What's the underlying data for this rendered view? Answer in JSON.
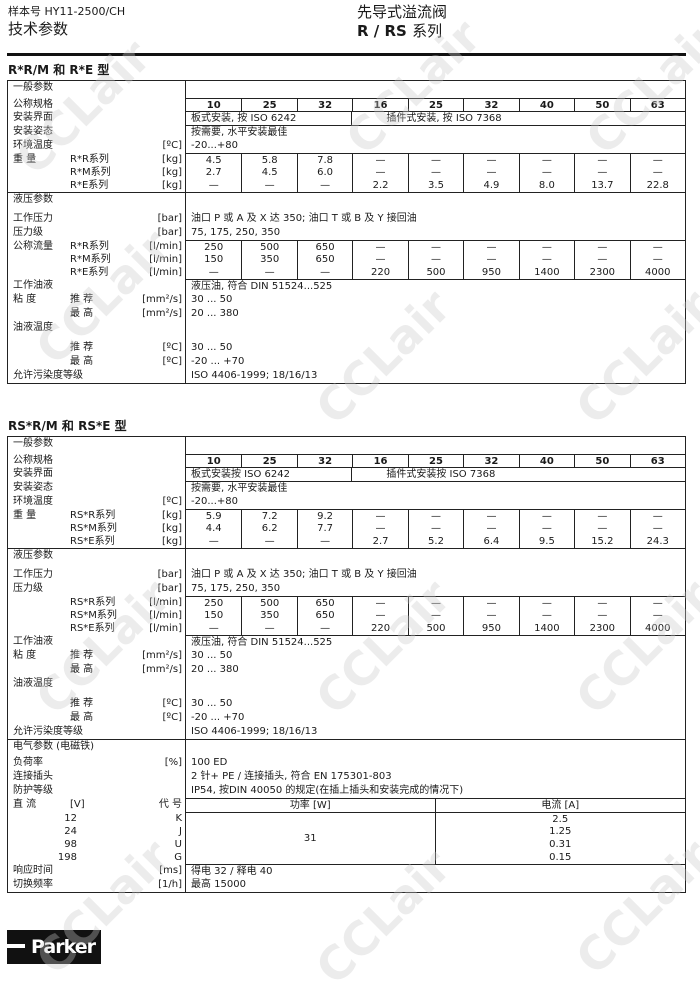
{
  "header": {
    "catalog": "样本号 HY11-2500/CH",
    "section": "技术参数",
    "product": "先导式溢流阀",
    "series_bold": "R / RS",
    "series_suffix": "系列"
  },
  "watermark": "CCLair",
  "logo": "Parker",
  "tables": [
    {
      "title": "R*R/M 和 R*E 型",
      "rows": [
        {
          "k": "section",
          "label": "一般参数"
        },
        {
          "k": "grid",
          "bold": true,
          "rule": true,
          "label": "公称规格",
          "cells": [
            "10",
            "25",
            "32",
            "16",
            "25",
            "32",
            "40",
            "50",
            "63"
          ]
        },
        {
          "k": "span",
          "rule": true,
          "label": "安装界面",
          "spans": [
            {
              "text": "板式安装, 按 ISO 6242",
              "cols": 3
            },
            {
              "text": "插件式安装, 按 ISO 7368",
              "cols": 6,
              "indent": true
            }
          ]
        },
        {
          "k": "text",
          "rule": true,
          "label": "安装姿态",
          "text": "按需要, 水平安装最佳"
        },
        {
          "k": "text",
          "label": "环境温度",
          "unit": "[ºC]",
          "text": "-20...+80"
        },
        {
          "k": "grid",
          "rule": true,
          "label": "重 量",
          "sub": "R*R系列",
          "unit": "[kg]",
          "cells": [
            "4.5",
            "5.8",
            "7.8",
            "—",
            "—",
            "—",
            "—",
            "—",
            "—"
          ]
        },
        {
          "k": "grid",
          "sub": "R*M系列",
          "unit": "[kg]",
          "cells": [
            "2.7",
            "4.5",
            "6.0",
            "—",
            "—",
            "—",
            "—",
            "—",
            "—"
          ]
        },
        {
          "k": "grid",
          "sub": "R*E系列",
          "unit": "[kg]",
          "cells": [
            "—",
            "—",
            "—",
            "2.2",
            "3.5",
            "4.9",
            "8.0",
            "13.7",
            "22.8"
          ]
        },
        {
          "k": "section",
          "full": true,
          "tall": true,
          "label": "液压参数"
        },
        {
          "k": "text",
          "label": "工作压力",
          "unit": "[bar]",
          "text": "油口 P 或 A 及 X 达 350;  油口 T 或 B 及 Y 接回油"
        },
        {
          "k": "text",
          "label": "压力级",
          "unit": "[bar]",
          "text": "75, 175, 250, 350"
        },
        {
          "k": "grid",
          "rule": true,
          "label": "公称流量",
          "sub": "R*R系列",
          "unit": "[l/min]",
          "cells": [
            "250",
            "500",
            "650",
            "—",
            "—",
            "—",
            "—",
            "—",
            "—"
          ]
        },
        {
          "k": "grid",
          "sub": "R*M系列",
          "unit": "[l/min]",
          "cells": [
            "150",
            "350",
            "650",
            "—",
            "—",
            "—",
            "—",
            "—",
            "—"
          ]
        },
        {
          "k": "grid",
          "sub": "R*E系列",
          "unit": "[l/min]",
          "cells": [
            "—",
            "—",
            "—",
            "220",
            "500",
            "950",
            "1400",
            "2300",
            "4000"
          ]
        },
        {
          "k": "text",
          "rule": true,
          "label": "工作油液",
          "text": "液压油, 符合 DIN 51524...525"
        },
        {
          "k": "text",
          "label": "粘 度",
          "sub": "推 荐",
          "unit": "[mm²/s]",
          "text": "30 ... 50"
        },
        {
          "k": "text",
          "sub": "最 高",
          "unit": "[mm²/s]",
          "text": "20 ... 380"
        },
        {
          "k": "section",
          "tall": true,
          "label": "油液温度"
        },
        {
          "k": "text",
          "sub": "推 荐",
          "unit": "[ºC]",
          "text": "30 ... 50"
        },
        {
          "k": "text",
          "sub": "最 高",
          "unit": "[ºC]",
          "text": "-20 ... +70"
        },
        {
          "k": "text",
          "label": "允许污染度等级",
          "text": "ISO 4406-1999; 18/16/13"
        }
      ]
    },
    {
      "title": "RS*R/M 和 RS*E 型",
      "rows": [
        {
          "k": "section",
          "label": "一般参数"
        },
        {
          "k": "grid",
          "bold": true,
          "rule": true,
          "label": "公称规格",
          "cells": [
            "10",
            "25",
            "32",
            "16",
            "25",
            "32",
            "40",
            "50",
            "63"
          ]
        },
        {
          "k": "span",
          "rule": true,
          "label": "安装界面",
          "spans": [
            {
              "text": "板式安装按 ISO 6242",
              "cols": 3
            },
            {
              "text": "插件式安装按 ISO 7368",
              "cols": 6,
              "indent": true
            }
          ]
        },
        {
          "k": "text",
          "rule": true,
          "label": "安装姿态",
          "text": "按需要, 水平安装最佳"
        },
        {
          "k": "text",
          "label": "环境温度",
          "unit": "[ºC]",
          "text": "-20...+80"
        },
        {
          "k": "grid",
          "rule": true,
          "label": "重 量",
          "sub": "RS*R系列",
          "unit": "[kg]",
          "cells": [
            "5.9",
            "7.2",
            "9.2",
            "—",
            "—",
            "—",
            "—",
            "—",
            "—"
          ]
        },
        {
          "k": "grid",
          "sub": "RS*M系列",
          "unit": "[kg]",
          "cells": [
            "4.4",
            "6.2",
            "7.7",
            "—",
            "—",
            "—",
            "—",
            "—",
            "—"
          ]
        },
        {
          "k": "grid",
          "sub": "RS*E系列",
          "unit": "[kg]",
          "cells": [
            "—",
            "—",
            "—",
            "2.7",
            "5.2",
            "6.4",
            "9.5",
            "15.2",
            "24.3"
          ]
        },
        {
          "k": "section",
          "full": true,
          "tall": true,
          "label": "液压参数"
        },
        {
          "k": "text",
          "label": "工作压力",
          "unit": "[bar]",
          "text": "油口 P 或 A 及 X 达 350;  油口 T 或 B 及 Y 接回油"
        },
        {
          "k": "text",
          "label": "压力级",
          "unit": "[bar]",
          "text": "75, 175, 250, 350"
        },
        {
          "k": "grid",
          "rule": true,
          "sub": "RS*R系列",
          "unit": "[l/min]",
          "cells": [
            "250",
            "500",
            "650",
            "—",
            "—",
            "—",
            "—",
            "—",
            "—"
          ]
        },
        {
          "k": "grid",
          "sub": "RS*M系列",
          "unit": "[l/min]",
          "cells": [
            "150",
            "350",
            "650",
            "—",
            "—",
            "—",
            "—",
            "—",
            "—"
          ]
        },
        {
          "k": "grid",
          "sub": "RS*E系列",
          "unit": "[l/min]",
          "cells": [
            "—",
            "—",
            "—",
            "220",
            "500",
            "950",
            "1400",
            "2300",
            "4000"
          ]
        },
        {
          "k": "text",
          "rule": true,
          "label": "工作油液",
          "text": "液压油, 符合 DIN 51524...525"
        },
        {
          "k": "text",
          "label": "粘 度",
          "sub": "推 荐",
          "unit": "[mm²/s]",
          "text": "30 ... 50"
        },
        {
          "k": "text",
          "sub": "最 高",
          "unit": "[mm²/s]",
          "text": "20 ... 380"
        },
        {
          "k": "section",
          "tall": true,
          "label": "油液温度"
        },
        {
          "k": "text",
          "sub": "推 荐",
          "unit": "[ºC]",
          "text": "30 ... 50"
        },
        {
          "k": "text",
          "sub": "最 高",
          "unit": "[ºC]",
          "text": "-20 ... +70"
        },
        {
          "k": "text",
          "label": "允许污染度等级",
          "text": "ISO 4406-1999; 18/16/13"
        },
        {
          "k": "section",
          "full": true,
          "label": "电气参数 (电磁铁)"
        },
        {
          "k": "text",
          "label": "负荷率",
          "unit": "[%]",
          "text": "100 ED"
        },
        {
          "k": "text",
          "label": "连接插头",
          "text": "2 针+ PE / 连接插头, 符合 EN 175301-803"
        },
        {
          "k": "text",
          "label": "防护等级",
          "text": "IP54, 按DIN  40050  的规定(在插上插头和安装完成的情况下)"
        },
        {
          "k": "dc",
          "label": "直 流",
          "sub": "[V]",
          "unit": "代 号",
          "power_header": "功率  [W]",
          "current_header": "电流  [A]",
          "power": "31",
          "rows": [
            {
              "voltage": "12",
              "code": "K",
              "current": "2.5"
            },
            {
              "voltage": "24",
              "code": "J",
              "current": "1.25"
            },
            {
              "voltage": "98",
              "code": "U",
              "current": "0.31"
            },
            {
              "voltage": "198",
              "code": "G",
              "current": "0.15"
            }
          ]
        },
        {
          "k": "text",
          "rule": true,
          "label": "响应时间",
          "unit": "[ms]",
          "text": "得电 32 / 释电 40"
        },
        {
          "k": "text",
          "label": "切换频率",
          "unit": "[1/h]",
          "text": "最高  15000"
        }
      ]
    }
  ]
}
